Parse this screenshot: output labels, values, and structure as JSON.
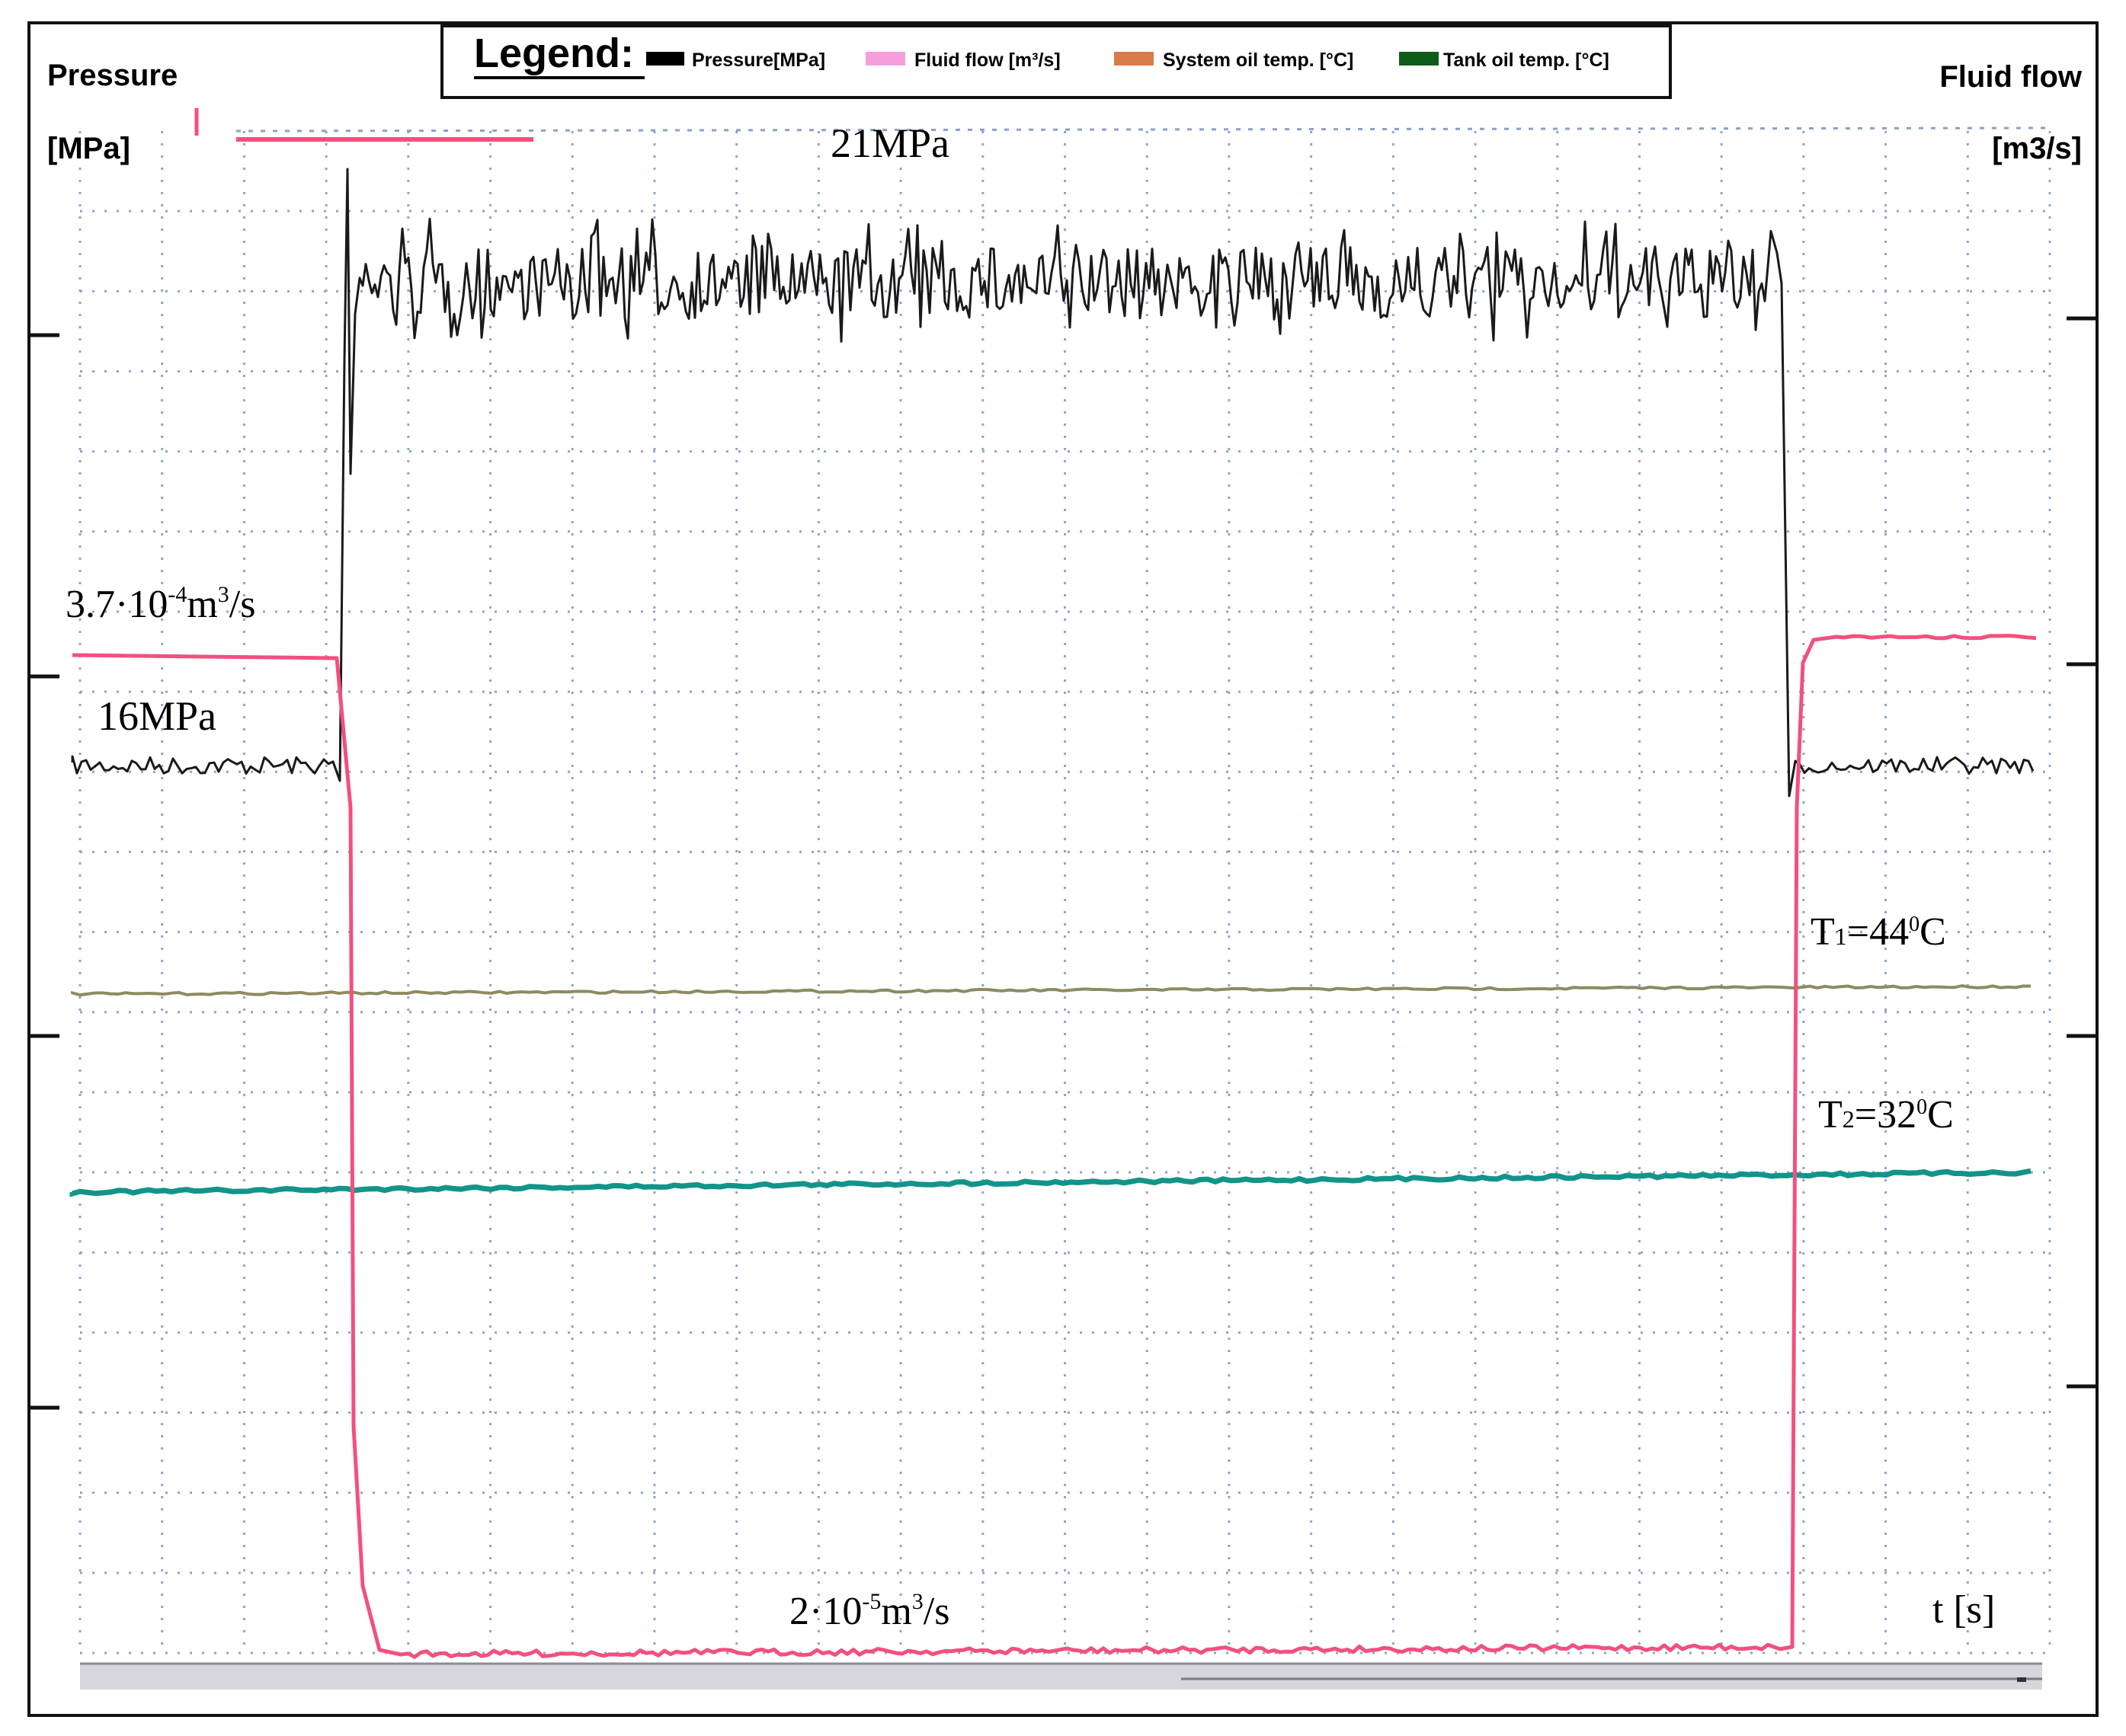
{
  "chart_data": {
    "type": "line",
    "legend": {
      "title": "Legend:",
      "placement": "top-center",
      "entries": [
        {
          "label": "Pressure[MPa]",
          "color": "#000000"
        },
        {
          "label": "Fluid flow [m³/s]",
          "color": "#f5a0dc"
        },
        {
          "label": "System oil temp. [°C]",
          "color": "#d97a4a"
        },
        {
          "label": "Tank oil temp. [°C]",
          "color": "#0e5c1a"
        }
      ]
    },
    "left_axis": {
      "title": "Pressure",
      "unit": "[MPa]"
    },
    "right_axis": {
      "title": "Fluid flow",
      "unit": "[m3/s]"
    },
    "x_axis": {
      "label": "t [s]"
    },
    "grid": true,
    "series": [
      {
        "name": "Pressure[MPa]",
        "color": "#1a1a1a",
        "levels": [
          {
            "phase": "before",
            "value": 16
          },
          {
            "phase": "loaded",
            "value": 21
          },
          {
            "phase": "after",
            "value": 16
          }
        ]
      },
      {
        "name": "Fluid flow [m³/s]",
        "color": "#f2507e",
        "levels": [
          {
            "phase": "before",
            "value": 0.00037
          },
          {
            "phase": "loaded",
            "value": 2e-05
          },
          {
            "phase": "after",
            "value": 0.00037
          }
        ]
      },
      {
        "name": "System oil temp. [°C]",
        "color": "#8e8a62",
        "levels": [
          {
            "phase": "all",
            "value": 44
          }
        ]
      },
      {
        "name": "Tank oil temp. [°C]",
        "color": "#13948a",
        "levels": [
          {
            "phase": "all",
            "value": 32
          }
        ]
      }
    ],
    "annotations": {
      "pressure_high": "21MPa",
      "pressure_low": "16MPa",
      "flow_high_prefix": "3.7·10",
      "flow_high_exp": "-4",
      "flow_high_suffix": "m",
      "flow_high_exp2": "3",
      "flow_high_end": "/s",
      "flow_low_prefix": "2·10",
      "flow_low_exp": "-5",
      "flow_low_suffix": "m",
      "flow_low_exp2": "3",
      "flow_low_end": "/s",
      "t1_main": "T",
      "t1_sub": "1",
      "t1_value": "=44",
      "t1_sup": "0",
      "t1_unit": "C",
      "t2_main": "T",
      "t2_sub": "2",
      "t2_value": "=32",
      "t2_sup": "0",
      "t2_unit": "C"
    }
  }
}
